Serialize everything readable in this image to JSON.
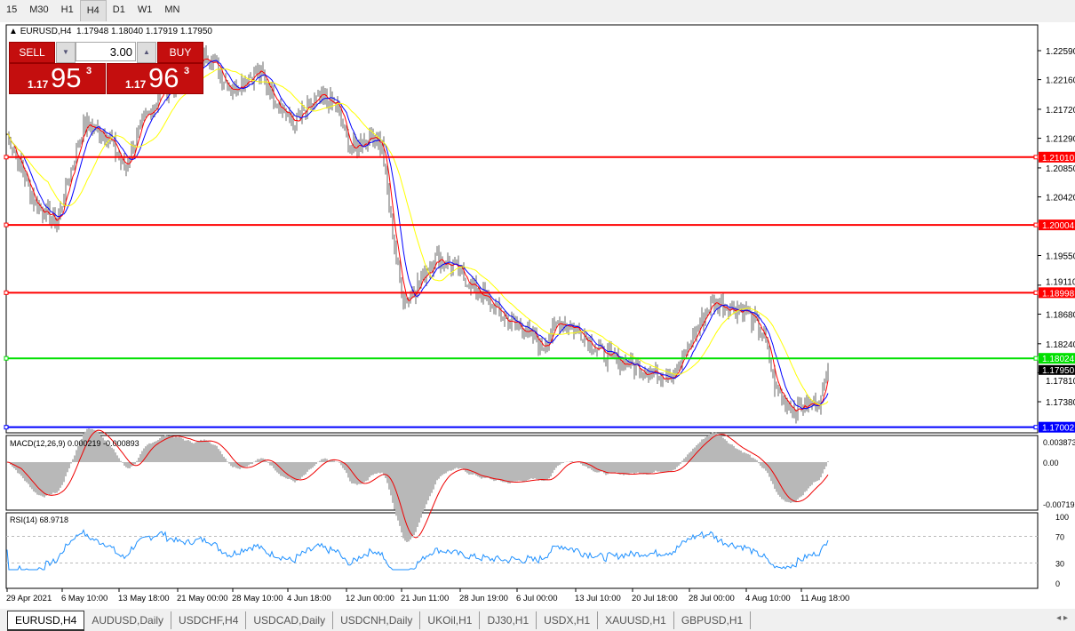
{
  "timeframes": [
    "15",
    "M30",
    "H1",
    "H4",
    "D1",
    "W1",
    "MN"
  ],
  "active_timeframe": "H4",
  "chart": {
    "title": "EURUSD,H4",
    "ohlc": "1.17948 1.18040 1.17919 1.17950"
  },
  "trade_panel": {
    "sell_label": "SELL",
    "buy_label": "BUY",
    "lot": "3.00",
    "sell_big": "1.17",
    "sell_pips": "95",
    "sell_sup": "3",
    "buy_big": "1.17",
    "buy_pips": "96",
    "buy_sup": "3"
  },
  "chart_data": {
    "type": "bar",
    "symbol": "EURUSD",
    "timeframe": "H4",
    "y_ticks": [
      "1.22590",
      "1.22160",
      "1.21720",
      "1.21290",
      "1.20850",
      "1.20420",
      "1.19550",
      "1.19110",
      "1.18680",
      "1.18240",
      "1.17810",
      "1.17380"
    ],
    "ylim": [
      1.1655,
      1.2293
    ],
    "approx_close_path": [
      [
        0,
        1.2136
      ],
      [
        16,
        1.2031
      ],
      [
        28,
        1.2004
      ],
      [
        43,
        1.215
      ],
      [
        56,
        1.2136
      ],
      [
        66,
        1.2084
      ],
      [
        76,
        1.215
      ],
      [
        88,
        1.2202
      ],
      [
        101,
        1.2216
      ],
      [
        113,
        1.2255
      ],
      [
        126,
        1.2202
      ],
      [
        141,
        1.2229
      ],
      [
        151,
        1.2189
      ],
      [
        161,
        1.215
      ],
      [
        176,
        1.2189
      ],
      [
        186,
        1.2176
      ],
      [
        193,
        1.211
      ],
      [
        206,
        1.2136
      ],
      [
        211,
        1.2117
      ],
      [
        216,
        1.2004
      ],
      [
        223,
        1.1886
      ],
      [
        231,
        1.1912
      ],
      [
        241,
        1.1952
      ],
      [
        251,
        1.1939
      ],
      [
        266,
        1.1899
      ],
      [
        281,
        1.1859
      ],
      [
        291,
        1.1846
      ],
      [
        301,
        1.182
      ],
      [
        311,
        1.1859
      ],
      [
        321,
        1.1846
      ],
      [
        336,
        1.1807
      ],
      [
        351,
        1.1793
      ],
      [
        366,
        1.178
      ],
      [
        376,
        1.178
      ],
      [
        386,
        1.1833
      ],
      [
        396,
        1.1886
      ],
      [
        406,
        1.1879
      ],
      [
        416,
        1.1873
      ],
      [
        426,
        1.1833
      ],
      [
        433,
        1.1754
      ],
      [
        443,
        1.1727
      ],
      [
        453,
        1.1734
      ],
      [
        458,
        1.1741
      ],
      [
        462,
        1.1795
      ]
    ],
    "hlines": [
      {
        "price": "1.21010",
        "color": "#ff0000"
      },
      {
        "price": "1.20004",
        "color": "#ff0000"
      },
      {
        "price": "1.18998",
        "color": "#ff0000"
      },
      {
        "price": "1.18024",
        "color": "#00e000"
      },
      {
        "price": "1.17002",
        "color": "#0000ff"
      }
    ],
    "current_price": "1.17950",
    "moving_averages": [
      {
        "period": 5,
        "color": "#ff0000"
      },
      {
        "period": 10,
        "color": "#0000ff"
      },
      {
        "period": 24,
        "color": "#ffff00"
      }
    ],
    "x_ticks": [
      {
        "bar": 0,
        "label": "29 Apr 2021"
      },
      {
        "bar": 31,
        "label": "6 May 10:00"
      },
      {
        "bar": 63,
        "label": "13 May 18:00"
      },
      {
        "bar": 96,
        "label": "21 May 00:00"
      },
      {
        "bar": 127,
        "label": "28 May 10:00"
      },
      {
        "bar": 158,
        "label": "4 Jun 18:00"
      },
      {
        "bar": 191,
        "label": "12 Jun 00:00"
      },
      {
        "bar": 222,
        "label": "21 Jun 11:00"
      },
      {
        "bar": 255,
        "label": "28 Jun 19:00"
      },
      {
        "bar": 287,
        "label": "6 Jul 00:00"
      },
      {
        "bar": 320,
        "label": "13 Jul 10:00"
      },
      {
        "bar": 352,
        "label": "20 Jul 18:00"
      },
      {
        "bar": 384,
        "label": "28 Jul 00:00"
      },
      {
        "bar": 416,
        "label": "4 Aug 10:00"
      },
      {
        "bar": 447,
        "label": "11 Aug 18:00"
      }
    ],
    "macd": {
      "label": "MACD(12,26,9) 0.000219 -0.000893",
      "ticks": [
        "0.003873",
        "0.00",
        "-0.00719"
      ]
    },
    "rsi": {
      "label": "RSI(14) 68.9718",
      "ticks": [
        "100",
        "70",
        "30",
        "0"
      ],
      "levels": [
        70,
        30
      ]
    }
  },
  "tabs": [
    "EURUSD,H4",
    "AUDUSD,Daily",
    "USDCHF,H4",
    "USDCAD,Daily",
    "USDCNH,Daily",
    "UKOil,H1",
    "DJ30,H1",
    "USDX,H1",
    "XAUUSD,H1",
    "GBPUSD,H1"
  ],
  "active_tab": "EURUSD,H4"
}
